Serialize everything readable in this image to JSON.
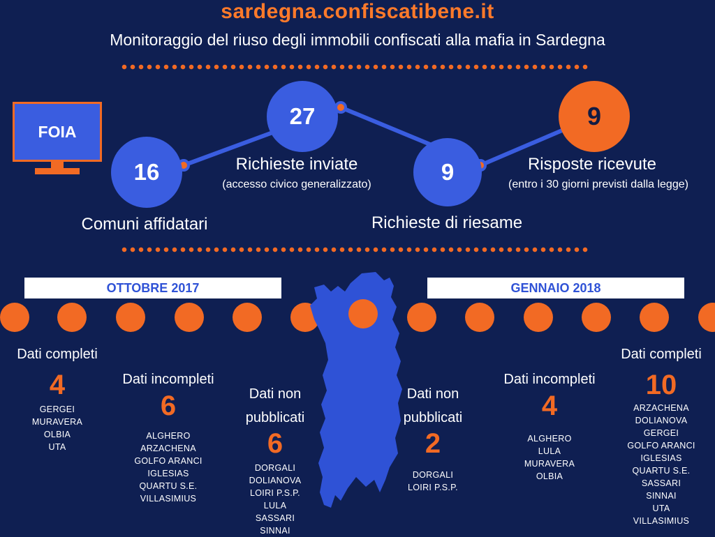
{
  "header": {
    "site": "sardegna.confiscatibene.it",
    "subtitle": "Monitoraggio del riuso degli immobili confiscati alla mafia in Sardegna"
  },
  "foia": {
    "label": "FOIA"
  },
  "stats": [
    {
      "value": "16",
      "label": "Comuni affidatari",
      "note": ""
    },
    {
      "value": "27",
      "label": "Richieste inviate",
      "note": "(accesso civico generalizzato)"
    },
    {
      "value": "9",
      "label": "Richieste di riesame",
      "note": ""
    },
    {
      "value": "9",
      "label": "Risposte ricevute",
      "note": "(entro i 30 giorni previsti dalla legge)"
    }
  ],
  "periods": {
    "left": "OTTOBRE 2017",
    "right": "GENNAIO 2018"
  },
  "groups": [
    {
      "cat": "Dati completi",
      "num": "4",
      "cities": [
        "GERGEI",
        "MURAVERA",
        "OLBIA",
        "UTA"
      ]
    },
    {
      "cat": "Dati incompleti",
      "num": "6",
      "cities": [
        "ALGHERO",
        "ARZACHENA",
        "GOLFO ARANCI",
        "IGLESIAS",
        "QUARTU S.E.",
        "VILLASIMIUS"
      ]
    },
    {
      "cat": "Dati non pubblicati",
      "num": "6",
      "cities": [
        "DORGALI",
        "DOLIANOVA",
        "LOIRI P.S.P.",
        "LULA",
        "SASSARI",
        "SINNAI"
      ]
    },
    {
      "cat": "Dati non pubblicati",
      "num": "2",
      "cities": [
        "DORGALI",
        "LOIRI P.S.P."
      ]
    },
    {
      "cat": "Dati incompleti",
      "num": "4",
      "cities": [
        "ALGHERO",
        "LULA",
        "MURAVERA",
        "OLBIA"
      ]
    },
    {
      "cat": "Dati completi",
      "num": "10",
      "cities": [
        "ARZACHENA",
        "DOLIANOVA",
        "GERGEI",
        "GOLFO ARANCI",
        "IGLESIAS",
        "QUARTU S.E.",
        "SASSARI",
        "SINNAI",
        "UTA",
        "VILLASIMIUS"
      ]
    }
  ],
  "colors": {
    "background": "#0f1f52",
    "accent_orange": "#f26a24",
    "accent_blue": "#3a5de0"
  },
  "icons": {
    "foia": "monitor-icon",
    "map": "sardinia-map-icon"
  }
}
